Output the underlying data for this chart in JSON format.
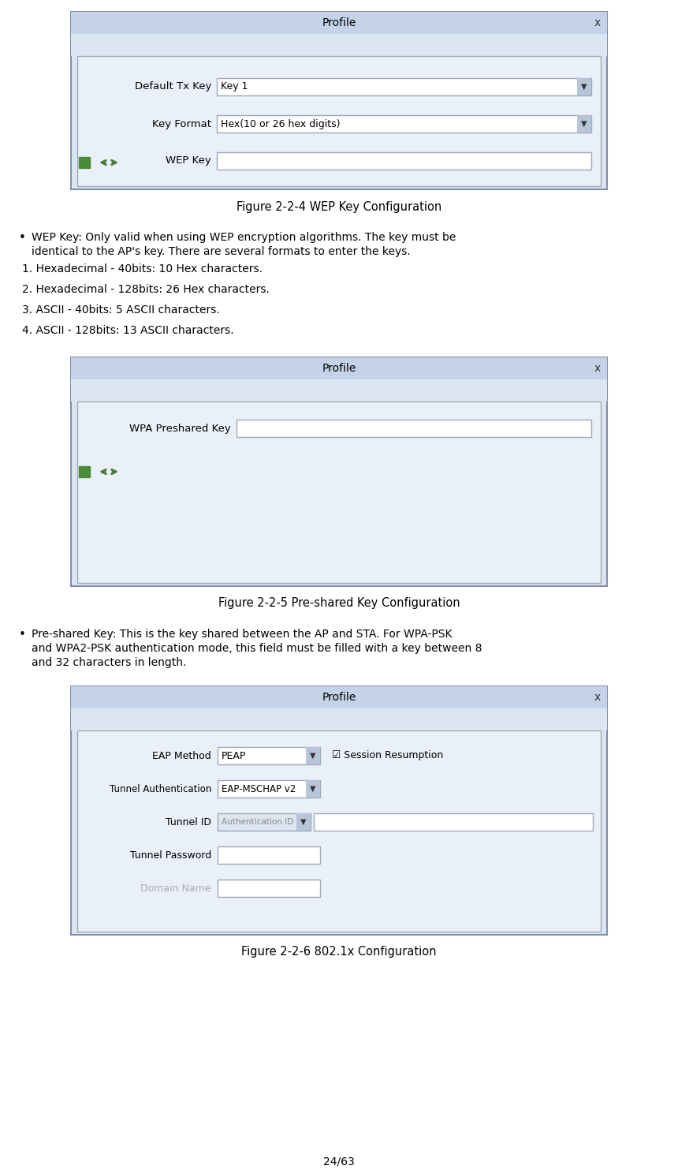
{
  "bg_color": "#ffffff",
  "fig_width": 8.6,
  "fig_height": 14.87,
  "page_number": "24/63",
  "fig1_caption": "Figure 2-2-4 WEP Key Configuration",
  "fig2_caption": "Figure 2-2-5 Pre-shared Key Configuration",
  "fig3_caption": "Figure 2-2-6 802.1x Configuration",
  "wep_items": [
    "1. Hexadecimal - 40bits: 10 Hex characters.",
    "2. Hexadecimal - 128bits: 26 Hex characters.",
    "3. ASCII - 40bits: 5 ASCII characters.",
    "4. ASCII - 128bits: 13 ASCII characters."
  ],
  "dialog_bg": "#dce6f0",
  "dialog_titlebar_bg": "#c5d3e8",
  "dialog_inner_bg": "#eaf0f8",
  "field_bg": "#ffffff",
  "field_border": "#a0a8b8",
  "text_color": "#000000",
  "title_color": "#000000",
  "green_sq": "#4a8a3a",
  "arrow_color": "#4a7a3a",
  "dialog_border": "#8090a8"
}
